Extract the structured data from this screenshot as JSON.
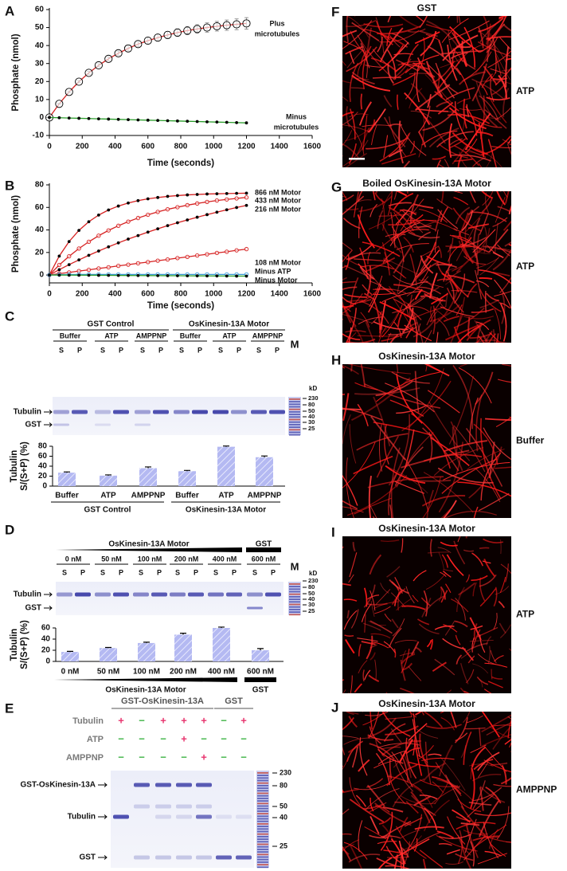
{
  "chart_data": [
    {
      "type": "line",
      "panel": "A",
      "xlabel": "Time (seconds)",
      "ylabel": "Phosphate (nmol)",
      "x": [
        0,
        60,
        120,
        180,
        240,
        300,
        360,
        420,
        480,
        540,
        600,
        660,
        720,
        780,
        840,
        900,
        960,
        1020,
        1080,
        1140,
        1200
      ],
      "xlim": [
        0,
        1600
      ],
      "xticks": [
        0,
        200,
        400,
        600,
        800,
        1000,
        1200,
        1400,
        1600
      ],
      "ylim": [
        -10,
        60
      ],
      "yticks": [
        -10,
        0,
        10,
        20,
        30,
        40,
        50,
        60
      ],
      "series": [
        {
          "label": [
            "Plus",
            "microtubules"
          ],
          "marker": "open-circle",
          "color": "#000000",
          "fit_color": "#d62020",
          "values": [
            0,
            7.6,
            14.2,
            19.9,
            24.8,
            29.0,
            32.6,
            35.7,
            38.4,
            40.8,
            42.7,
            44.4,
            45.9,
            47.2,
            48.3,
            49.2,
            50.0,
            50.7,
            51.3,
            51.8,
            52.3
          ],
          "errors": [
            0,
            0.3,
            0.5,
            0.6,
            0.8,
            0.9,
            1.1,
            1.2,
            1.4,
            1.5,
            1.7,
            1.8,
            2.0,
            2.1,
            2.3,
            2.4,
            2.6,
            2.7,
            2.9,
            3.0,
            3.2
          ]
        },
        {
          "label": [
            "Minus",
            "microtubules"
          ],
          "marker": "dot",
          "color": "#000000",
          "fit_color": "#2a9d2a",
          "values": [
            0,
            -0.15,
            -0.3,
            -0.45,
            -0.6,
            -0.75,
            -0.9,
            -1.05,
            -1.2,
            -1.35,
            -1.5,
            -1.65,
            -1.8,
            -1.95,
            -2.1,
            -2.25,
            -2.4,
            -2.55,
            -2.7,
            -2.85,
            -3.0
          ]
        }
      ]
    },
    {
      "type": "line",
      "panel": "B",
      "xlabel": "Time (seconds)",
      "ylabel": "Phosphate (nmol)",
      "x": [
        0,
        60,
        120,
        180,
        240,
        300,
        360,
        420,
        480,
        540,
        600,
        660,
        720,
        780,
        840,
        900,
        960,
        1020,
        1080,
        1140,
        1200
      ],
      "xlim": [
        0,
        1600
      ],
      "xticks": [
        0,
        200,
        400,
        600,
        800,
        1000,
        1200,
        1400,
        1600
      ],
      "ylim": [
        -7,
        80
      ],
      "yticks": [
        0,
        20,
        40,
        60,
        80
      ],
      "series": [
        {
          "label": [
            "866 nM Motor"
          ],
          "marker": "dot",
          "color": "#000000",
          "fit_color": "#d62020",
          "values": [
            0,
            16.8,
            29.7,
            39.6,
            47.3,
            53.2,
            57.7,
            61.2,
            63.9,
            66.0,
            67.6,
            68.8,
            69.8,
            70.5,
            71.1,
            71.5,
            71.9,
            72.1,
            72.3,
            72.5,
            72.6
          ]
        },
        {
          "label": [
            "433 nM Motor"
          ],
          "marker": "open-circle",
          "color": "#d62020",
          "fit_color": "#d62020",
          "values": [
            0,
            8.9,
            16.6,
            23.5,
            29.5,
            34.9,
            39.6,
            43.7,
            47.4,
            50.6,
            53.5,
            56.0,
            58.3,
            60.2,
            62.0,
            63.5,
            64.9,
            66.1,
            67.1,
            68.0,
            68.9
          ]
        },
        {
          "label": [
            "216 nM Motor"
          ],
          "marker": "dot",
          "color": "#000000",
          "fit_color": "#d62020",
          "values": [
            0,
            4.7,
            9.2,
            13.4,
            17.5,
            21.3,
            25.0,
            28.5,
            31.9,
            35.0,
            38.1,
            41.0,
            43.8,
            46.4,
            48.9,
            51.3,
            53.6,
            55.8,
            57.9,
            59.9,
            61.8
          ]
        },
        {
          "label": [
            "108 nM Motor"
          ],
          "marker": "open-circle",
          "color": "#d62020",
          "fit_color": "#d62020",
          "values": [
            0,
            1.2,
            2.3,
            3.5,
            4.6,
            5.8,
            6.9,
            8.1,
            9.2,
            10.4,
            11.5,
            12.7,
            13.8,
            15.0,
            16.1,
            17.3,
            18.4,
            19.6,
            20.7,
            21.9,
            23.0
          ]
        },
        {
          "label": [
            "Minus ATP"
          ],
          "marker": "open-circle",
          "color": "#3a9ad8",
          "fit_color": "#3a9ad8",
          "values": [
            0,
            0.3,
            0.4,
            0.5,
            0.5,
            0.5,
            0.5,
            0.5,
            0.5,
            0.5,
            0.5,
            0.5,
            0.5,
            0.5,
            0.5,
            0.5,
            0.5,
            0.5,
            0.5,
            0.5,
            0.5
          ]
        },
        {
          "label": [
            "Minus Motor"
          ],
          "marker": "dot",
          "color": "#000000",
          "fit_color": "#2a9d2a",
          "values": [
            0,
            -0.05,
            -0.1,
            -0.15,
            -0.2,
            -0.25,
            -0.3,
            -0.35,
            -0.4,
            -0.45,
            -0.5,
            -0.55,
            -0.6,
            -0.65,
            -0.7,
            -0.75,
            -0.8,
            -0.85,
            -0.9,
            -0.95,
            -1.0
          ]
        }
      ]
    },
    {
      "type": "bar",
      "panel": "C",
      "ylabel": [
        "Tubulin",
        "S/(S+P) (%)"
      ],
      "ylim": [
        0,
        80
      ],
      "yticks": [
        0,
        20,
        40,
        60,
        80
      ],
      "groups": [
        {
          "name": "GST Control",
          "categories": [
            "Buffer",
            "ATP",
            "AMPPNP"
          ],
          "values": [
            27,
            21,
            36
          ],
          "errors": [
            1.5,
            1.5,
            2.5
          ]
        },
        {
          "name": "OsKinesin-13A Motor",
          "categories": [
            "Buffer",
            "ATP",
            "AMPPNP"
          ],
          "values": [
            30,
            79,
            58
          ],
          "errors": [
            1.5,
            1.5,
            2.5
          ]
        }
      ]
    },
    {
      "type": "bar",
      "panel": "D",
      "ylabel": [
        "Tubulin",
        "S/(S+P) (%)"
      ],
      "ylim": [
        0,
        60
      ],
      "yticks": [
        0,
        20,
        40,
        60
      ],
      "groups": [
        {
          "name": "OsKinesin-13A Motor",
          "categories": [
            "0 nM",
            "50 nM",
            "100 nM",
            "200 nM",
            "400 nM"
          ],
          "values": [
            17,
            24,
            33,
            48,
            60
          ],
          "errors": [
            1,
            1,
            1.5,
            2.5,
            1.5
          ]
        },
        {
          "name": "GST",
          "categories": [
            "600 nM"
          ],
          "values": [
            20
          ],
          "errors": [
            3
          ]
        }
      ]
    }
  ],
  "gel_c": {
    "groups": [
      {
        "name": "GST Control",
        "conditions": [
          "Buffer",
          "ATP",
          "AMPPNP"
        ]
      },
      {
        "name": "OsKinesin-13A Motor",
        "conditions": [
          "Buffer",
          "ATP",
          "AMPPNP"
        ]
      }
    ],
    "lane_labels": [
      "S",
      "P"
    ],
    "marker": "M",
    "unit": "kD",
    "markers": [
      230,
      80,
      50,
      40,
      30,
      25
    ],
    "bands": [
      "Tubulin",
      "GST"
    ]
  },
  "gel_d": {
    "groups": [
      {
        "name": "OsKinesin-13A Motor",
        "conditions": [
          "0 nM",
          "50 nM",
          "100 nM",
          "200 nM",
          "400 nM"
        ]
      },
      {
        "name": "GST",
        "conditions": [
          "600 nM"
        ]
      }
    ],
    "lane_labels": [
      "S",
      "P"
    ],
    "marker": "M",
    "unit": "kD",
    "markers": [
      230,
      80,
      50,
      40,
      30,
      25
    ],
    "bands": [
      "Tubulin",
      "GST"
    ]
  },
  "panel_e": {
    "panel": "E",
    "rows": [
      "Tubulin",
      "ATP",
      "AMPPNP"
    ],
    "groups": [
      {
        "name": "GST-OsKinesin-13A",
        "lanes": [
          [
            "+",
            "−",
            "−"
          ],
          [
            "−",
            "−",
            "−"
          ],
          [
            "+",
            "−",
            "−"
          ],
          [
            "+",
            "+",
            "−"
          ],
          [
            "+",
            "−",
            "+"
          ]
        ]
      },
      {
        "name": "GST",
        "lanes": [
          [
            "−",
            "−",
            "−"
          ],
          [
            "+",
            "−",
            "−"
          ]
        ]
      }
    ],
    "bands": [
      "GST-OsKinesin-13A",
      "Tubulin",
      "GST"
    ],
    "markers": [
      230,
      80,
      50,
      40,
      25
    ]
  },
  "micrographs": [
    {
      "panel": "F",
      "title": "GST",
      "condition": "ATP"
    },
    {
      "panel": "G",
      "title": "Boiled OsKinesin-13A Motor",
      "condition": "ATP"
    },
    {
      "panel": "H",
      "title": "OsKinesin-13A Motor",
      "condition": "Buffer"
    },
    {
      "panel": "I",
      "title": "OsKinesin-13A Motor",
      "condition": "ATP"
    },
    {
      "panel": "J",
      "title": "OsKinesin-13A Motor",
      "condition": "AMPPNP"
    }
  ]
}
